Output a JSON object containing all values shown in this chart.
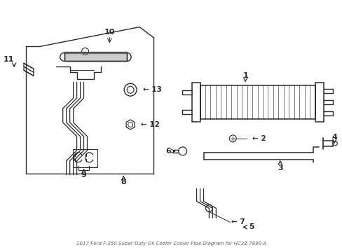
{
  "title": "2017 Ford F-350 Super Duty Oil Cooler Cooler Pipe Diagram for HC3Z-7890-A",
  "background_color": "#ffffff",
  "line_color": "#2a2a2a",
  "fig_width": 4.89,
  "fig_height": 3.6,
  "dpi": 100
}
